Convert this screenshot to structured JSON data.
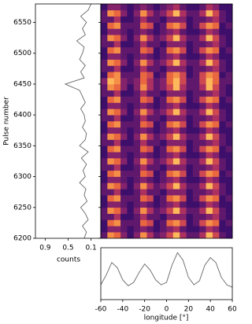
{
  "chart_data": [
    {
      "type": "heatmap",
      "x": [
        -57,
        -51,
        -45,
        -39,
        -33,
        -27,
        -21,
        -15,
        -9,
        -3,
        3,
        9,
        15,
        21,
        27,
        33,
        39,
        45,
        51,
        57
      ],
      "y": [
        6200,
        6210,
        6220,
        6230,
        6240,
        6250,
        6260,
        6270,
        6280,
        6290,
        6300,
        6310,
        6320,
        6330,
        6340,
        6350,
        6360,
        6370,
        6380,
        6390,
        6400,
        6410,
        6420,
        6430,
        6440,
        6450,
        6460,
        6470,
        6480,
        6490,
        6500,
        6510,
        6520,
        6530,
        6540,
        6550,
        6560,
        6570
      ],
      "z": [
        [
          2,
          7,
          6,
          3,
          1,
          3,
          7,
          4,
          2,
          3,
          5,
          8,
          4,
          2,
          2,
          4,
          8,
          5,
          2,
          1
        ],
        [
          1,
          3,
          3,
          2,
          1,
          2,
          3,
          2,
          1,
          2,
          3,
          4,
          2,
          1,
          1,
          2,
          4,
          3,
          1,
          1
        ],
        [
          1,
          6,
          7,
          2,
          2,
          2,
          6,
          5,
          1,
          2,
          6,
          7,
          5,
          1,
          2,
          5,
          7,
          6,
          1,
          2
        ],
        [
          2,
          2,
          4,
          1,
          1,
          2,
          4,
          2,
          2,
          1,
          3,
          3,
          3,
          1,
          2,
          2,
          3,
          4,
          2,
          1
        ],
        [
          2,
          7,
          6,
          3,
          1,
          3,
          7,
          4,
          2,
          3,
          5,
          8,
          4,
          2,
          2,
          4,
          8,
          5,
          2,
          1
        ],
        [
          1,
          3,
          3,
          2,
          1,
          2,
          3,
          2,
          1,
          2,
          3,
          4,
          2,
          1,
          1,
          2,
          4,
          3,
          1,
          1
        ],
        [
          1,
          6,
          7,
          2,
          2,
          2,
          6,
          5,
          1,
          2,
          6,
          7,
          5,
          1,
          2,
          5,
          7,
          6,
          1,
          2
        ],
        [
          2,
          2,
          4,
          1,
          1,
          2,
          4,
          2,
          2,
          1,
          3,
          3,
          3,
          1,
          2,
          2,
          3,
          4,
          2,
          1
        ],
        [
          2,
          7,
          6,
          3,
          1,
          3,
          7,
          4,
          2,
          3,
          5,
          8,
          4,
          2,
          2,
          4,
          8,
          5,
          2,
          1
        ],
        [
          1,
          3,
          3,
          2,
          1,
          2,
          3,
          2,
          1,
          2,
          3,
          4,
          2,
          1,
          1,
          2,
          4,
          3,
          1,
          1
        ],
        [
          1,
          6,
          7,
          2,
          2,
          2,
          6,
          5,
          1,
          2,
          6,
          7,
          5,
          1,
          2,
          5,
          7,
          6,
          1,
          2
        ],
        [
          2,
          2,
          4,
          1,
          1,
          2,
          4,
          2,
          2,
          1,
          3,
          3,
          3,
          1,
          2,
          2,
          3,
          4,
          2,
          1
        ],
        [
          2,
          7,
          6,
          3,
          1,
          3,
          7,
          4,
          2,
          3,
          5,
          8,
          4,
          2,
          2,
          4,
          8,
          5,
          2,
          1
        ],
        [
          1,
          3,
          3,
          2,
          1,
          2,
          3,
          2,
          1,
          2,
          3,
          4,
          2,
          1,
          1,
          2,
          4,
          3,
          1,
          1
        ],
        [
          1,
          6,
          7,
          2,
          2,
          2,
          6,
          5,
          1,
          2,
          6,
          7,
          5,
          1,
          2,
          5,
          7,
          6,
          1,
          2
        ],
        [
          2,
          2,
          4,
          1,
          1,
          2,
          4,
          2,
          2,
          1,
          3,
          3,
          3,
          1,
          2,
          2,
          3,
          4,
          2,
          1
        ],
        [
          2,
          7,
          6,
          3,
          1,
          3,
          7,
          4,
          2,
          3,
          5,
          8,
          4,
          2,
          2,
          4,
          8,
          5,
          2,
          1
        ],
        [
          1,
          3,
          3,
          2,
          1,
          2,
          3,
          2,
          1,
          2,
          3,
          4,
          2,
          1,
          1,
          2,
          4,
          3,
          1,
          1
        ],
        [
          1,
          6,
          7,
          2,
          2,
          2,
          6,
          5,
          1,
          2,
          6,
          7,
          5,
          1,
          2,
          5,
          7,
          6,
          1,
          2
        ],
        [
          2,
          2,
          4,
          1,
          1,
          2,
          4,
          2,
          2,
          1,
          3,
          3,
          3,
          1,
          2,
          2,
          3,
          4,
          2,
          1
        ],
        [
          2,
          7,
          6,
          3,
          1,
          3,
          7,
          4,
          2,
          3,
          5,
          8,
          4,
          2,
          2,
          4,
          8,
          5,
          2,
          1
        ],
        [
          1,
          3,
          3,
          2,
          1,
          2,
          3,
          2,
          1,
          2,
          3,
          4,
          2,
          1,
          1,
          2,
          4,
          3,
          1,
          1
        ],
        [
          1,
          6,
          7,
          2,
          2,
          2,
          6,
          5,
          1,
          2,
          6,
          7,
          5,
          1,
          2,
          5,
          7,
          6,
          1,
          2
        ],
        [
          2,
          2,
          4,
          1,
          1,
          2,
          4,
          2,
          2,
          1,
          3,
          3,
          3,
          1,
          2,
          2,
          3,
          4,
          2,
          1
        ],
        [
          2,
          7,
          6,
          3,
          1,
          3,
          7,
          4,
          2,
          3,
          5,
          8,
          4,
          2,
          2,
          4,
          8,
          5,
          2,
          1
        ],
        [
          3,
          8,
          7,
          3,
          2,
          3,
          6,
          4,
          2,
          3,
          6,
          8,
          5,
          2,
          2,
          5,
          8,
          6,
          2,
          2
        ],
        [
          1,
          6,
          7,
          2,
          2,
          2,
          6,
          5,
          1,
          2,
          6,
          7,
          5,
          1,
          2,
          5,
          7,
          6,
          1,
          2
        ],
        [
          2,
          2,
          4,
          1,
          1,
          2,
          4,
          2,
          2,
          1,
          3,
          3,
          3,
          1,
          2,
          2,
          3,
          4,
          2,
          1
        ],
        [
          2,
          7,
          6,
          3,
          1,
          3,
          7,
          4,
          2,
          3,
          5,
          8,
          4,
          2,
          2,
          4,
          8,
          5,
          2,
          1
        ],
        [
          1,
          3,
          3,
          2,
          1,
          2,
          3,
          2,
          1,
          2,
          3,
          4,
          2,
          1,
          1,
          2,
          4,
          3,
          1,
          1
        ],
        [
          1,
          6,
          7,
          2,
          2,
          2,
          6,
          5,
          1,
          2,
          6,
          7,
          5,
          1,
          2,
          5,
          7,
          6,
          1,
          2
        ],
        [
          2,
          2,
          4,
          1,
          1,
          2,
          4,
          2,
          2,
          1,
          3,
          3,
          3,
          1,
          2,
          2,
          3,
          4,
          2,
          1
        ],
        [
          2,
          7,
          6,
          3,
          1,
          3,
          7,
          4,
          2,
          3,
          5,
          8,
          4,
          2,
          2,
          4,
          8,
          5,
          2,
          1
        ],
        [
          1,
          3,
          3,
          2,
          1,
          2,
          3,
          2,
          1,
          2,
          3,
          4,
          2,
          1,
          1,
          2,
          4,
          3,
          1,
          1
        ],
        [
          1,
          6,
          7,
          2,
          2,
          2,
          6,
          5,
          1,
          2,
          6,
          7,
          5,
          1,
          2,
          5,
          7,
          6,
          1,
          2
        ],
        [
          2,
          2,
          4,
          1,
          1,
          2,
          4,
          2,
          2,
          1,
          3,
          3,
          3,
          1,
          2,
          2,
          3,
          4,
          2,
          1
        ],
        [
          2,
          7,
          6,
          3,
          1,
          3,
          7,
          4,
          2,
          3,
          5,
          8,
          4,
          2,
          2,
          4,
          8,
          5,
          2,
          1
        ],
        [
          1,
          3,
          3,
          2,
          1,
          2,
          3,
          2,
          1,
          2,
          3,
          4,
          2,
          1,
          1,
          2,
          4,
          3,
          1,
          1
        ]
      ],
      "colors": [
        "#3d0f6b",
        "#7a1e6e",
        "#c0385c",
        "#f0703a",
        "#fcb85a"
      ],
      "xlim": [
        -60,
        60
      ],
      "ylim": [
        6200,
        6580
      ]
    },
    {
      "type": "line",
      "ylabel": "Pulse number",
      "xlabel": "counts",
      "y": [
        6200,
        6210,
        6220,
        6230,
        6240,
        6250,
        6260,
        6270,
        6280,
        6290,
        6300,
        6310,
        6320,
        6330,
        6340,
        6350,
        6360,
        6370,
        6380,
        6390,
        6400,
        6410,
        6420,
        6430,
        6440,
        6450,
        6460,
        6470,
        6480,
        6490,
        6500,
        6510,
        6520,
        6530,
        6540,
        6550,
        6560,
        6570,
        6580
      ],
      "values": [
        0.22,
        0.18,
        0.25,
        0.15,
        0.2,
        0.28,
        0.17,
        0.22,
        0.19,
        0.3,
        0.2,
        0.24,
        0.18,
        0.27,
        0.15,
        0.3,
        0.2,
        0.18,
        0.25,
        0.2,
        0.22,
        0.28,
        0.2,
        0.25,
        0.3,
        0.55,
        0.22,
        0.28,
        0.2,
        0.3,
        0.25,
        0.22,
        0.35,
        0.2,
        0.25,
        0.18,
        0.28,
        0.15,
        0.1
      ],
      "color": "#666666",
      "xlim": [
        1.07,
        -0.07
      ],
      "xticks": [
        0.9,
        0.5,
        0.1
      ],
      "ylim": [
        6200,
        6580
      ],
      "yticks": [
        6200,
        6250,
        6300,
        6350,
        6400,
        6450,
        6500,
        6550
      ]
    },
    {
      "type": "line",
      "xlabel": "longitude [°]",
      "x": [
        -60,
        -55,
        -50,
        -45,
        -40,
        -35,
        -30,
        -25,
        -20,
        -15,
        -10,
        -5,
        0,
        5,
        10,
        15,
        20,
        25,
        30,
        35,
        40,
        45,
        50,
        55,
        60
      ],
      "values": [
        0.3,
        0.5,
        0.75,
        0.65,
        0.4,
        0.28,
        0.35,
        0.55,
        0.72,
        0.6,
        0.4,
        0.3,
        0.35,
        0.7,
        0.95,
        0.8,
        0.45,
        0.3,
        0.38,
        0.7,
        0.85,
        0.75,
        0.45,
        0.3,
        0.25
      ],
      "color": "#666666",
      "xlim": [
        -60,
        60
      ],
      "xticks": [
        -60,
        -40,
        -20,
        0,
        20,
        40,
        60
      ],
      "ylim": [
        0,
        1.05
      ]
    }
  ]
}
